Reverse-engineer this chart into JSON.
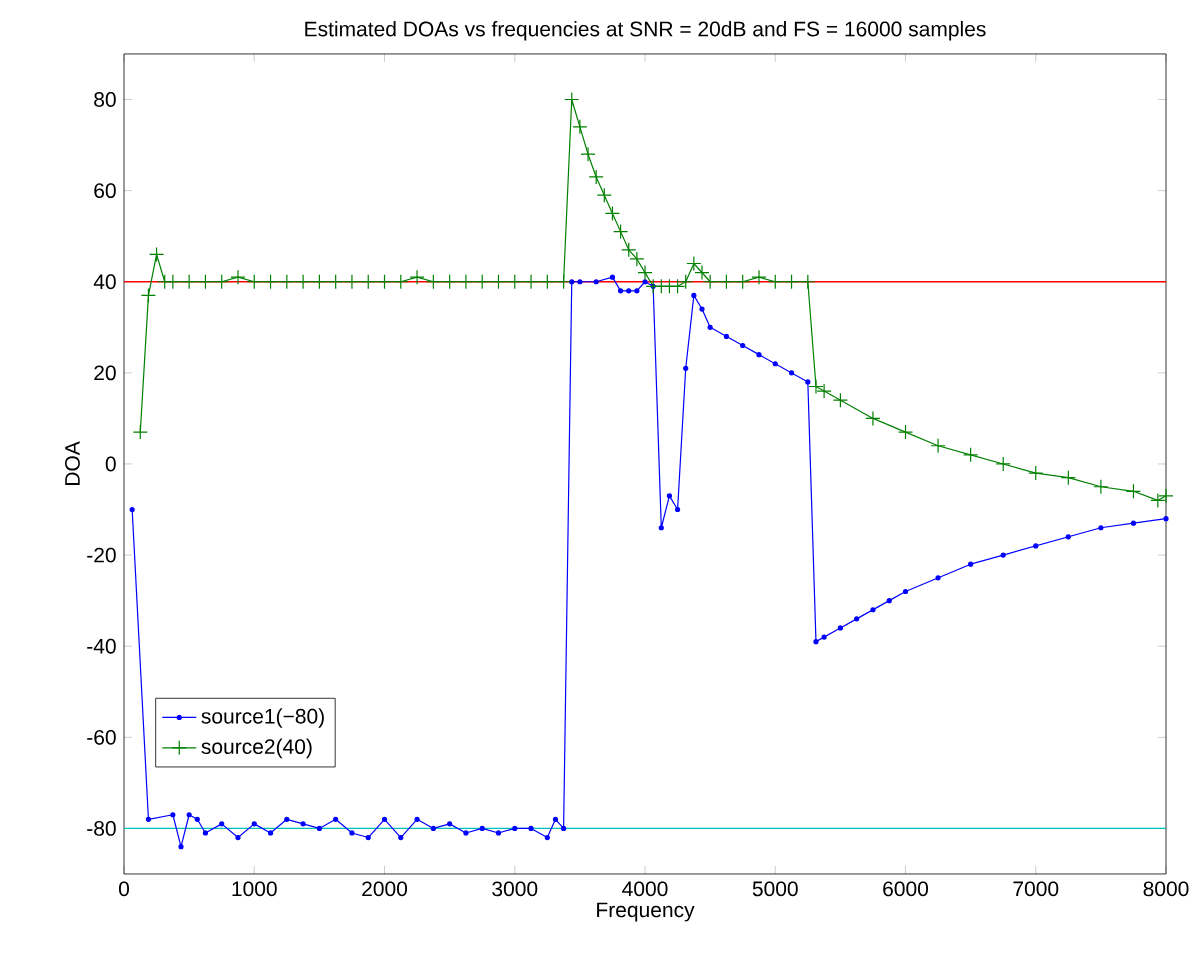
{
  "chart_data": {
    "type": "line",
    "title": "Estimated DOAs vs frequencies at SNR = 20dB and FS = 16000 samples",
    "xlabel": "Frequency",
    "ylabel": "DOA",
    "xlim": [
      0,
      8000
    ],
    "ylim": [
      -90,
      90
    ],
    "xticks": [
      0,
      1000,
      2000,
      3000,
      4000,
      5000,
      6000,
      7000,
      8000
    ],
    "yticks": [
      -80,
      -60,
      -40,
      -20,
      0,
      20,
      40,
      60,
      80
    ],
    "grid": false,
    "legend": "bottom left",
    "ref_lines": [
      {
        "axis": "y",
        "value": 40,
        "color": "#ff0000"
      },
      {
        "axis": "y",
        "value": -80,
        "color": "#00bfbf"
      }
    ],
    "series": [
      {
        "name": "source1(−80)",
        "color": "#0000ff",
        "marker": "circle",
        "x": [
          62.5,
          125,
          187.5,
          250,
          312.5,
          375,
          437.5,
          500,
          562.5,
          625,
          750,
          875,
          1000,
          1125,
          1250,
          1375,
          1500,
          1625,
          1750,
          1875,
          2000,
          2125,
          2250,
          2375,
          2500,
          2625,
          2750,
          2875,
          3000,
          3125,
          3250,
          3312.5,
          3375,
          3437.5,
          3500,
          3625,
          3750,
          3812.5,
          3875,
          3937.5,
          4000,
          4062.5,
          4125,
          4187.5,
          4250,
          4312.5,
          4375,
          4437.5,
          4500,
          4625,
          4750,
          4875,
          5000,
          5125,
          5250,
          5312.5,
          5375,
          5500,
          5625,
          5750,
          5875,
          6000,
          6250,
          6500,
          6750,
          7000,
          7250,
          7500,
          7750,
          8000
        ],
        "values": [
          -10,
          null,
          -78,
          null,
          null,
          -77,
          -84,
          -77,
          -78,
          -81,
          -79,
          -82,
          -79,
          -81,
          -78,
          -79,
          -80,
          -78,
          -81,
          -82,
          -78,
          -82,
          -78,
          -80,
          -79,
          -81,
          -80,
          -81,
          -80,
          -80,
          -82,
          -78,
          -80,
          40,
          40,
          40,
          41,
          38,
          38,
          38,
          40,
          39,
          -14,
          -7,
          -10,
          21,
          37,
          34,
          30,
          28,
          26,
          24,
          22,
          20,
          18,
          -39,
          -38,
          -36,
          -34,
          -32,
          -30,
          -28,
          -25,
          -22,
          -20,
          -18,
          -16,
          -14,
          -13,
          -12
        ]
      },
      {
        "name": "source2(40)",
        "color": "#008000",
        "marker": "cross",
        "x": [
          125,
          187.5,
          250,
          312.5,
          375,
          500,
          625,
          750,
          875,
          1000,
          1125,
          1250,
          1375,
          1500,
          1625,
          1750,
          1875,
          2000,
          2125,
          2250,
          2375,
          2500,
          2625,
          2750,
          2875,
          3000,
          3125,
          3250,
          3375,
          3437.5,
          3500,
          3562.5,
          3625,
          3687.5,
          3750,
          3812.5,
          3875,
          3937.5,
          4000,
          4062.5,
          4125,
          4187.5,
          4250,
          4312.5,
          4375,
          4437.5,
          4500,
          4625,
          4750,
          4875,
          5000,
          5125,
          5250,
          5312.5,
          5375,
          5500,
          5750,
          6000,
          6250,
          6500,
          6750,
          7000,
          7250,
          7500,
          7750,
          7937.5,
          8000
        ],
        "values": [
          7,
          37,
          46,
          40,
          40,
          40,
          40,
          40,
          41,
          40,
          40,
          40,
          40,
          40,
          40,
          40,
          40,
          40,
          40,
          41,
          40,
          40,
          40,
          40,
          40,
          40,
          40,
          40,
          40,
          80,
          74,
          68,
          63,
          59,
          55,
          51,
          47,
          45,
          42,
          39,
          39,
          39,
          39,
          40,
          44,
          42,
          40,
          40,
          40,
          41,
          40,
          40,
          40,
          17,
          16,
          14,
          10,
          7,
          4,
          2,
          0,
          -2,
          -3,
          -5,
          -6,
          -8,
          -7
        ]
      }
    ]
  }
}
